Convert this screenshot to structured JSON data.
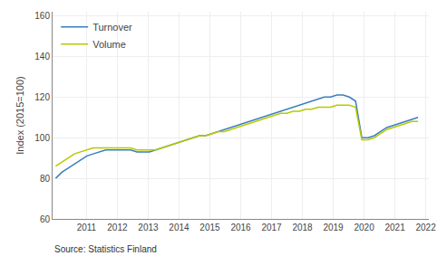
{
  "chart_data": {
    "type": "line",
    "ylabel": "Index (2015=100)",
    "x": [
      2010,
      2010.202586,
      2010.405172,
      2010.607759,
      2010.810345,
      2011.012931,
      2011.215517,
      2011.418103,
      2011.62069,
      2011.823276,
      2012.025862,
      2012.228448,
      2012.431034,
      2012.633621,
      2012.836207,
      2013.038793,
      2013.241379,
      2013.443966,
      2013.646552,
      2013.849138,
      2014.051724,
      2014.25431,
      2014.456897,
      2014.659483,
      2014.862069,
      2015.064655,
      2015.267241,
      2015.469828,
      2015.672414,
      2015.875,
      2016.077586,
      2016.280172,
      2016.482759,
      2016.685345,
      2016.887931,
      2017.090517,
      2017.293103,
      2017.49569,
      2017.698276,
      2017.900862,
      2018.103448,
      2018.306034,
      2018.508621,
      2018.711207,
      2018.913793,
      2019.116379,
      2019.318966,
      2019.521552,
      2019.724138,
      2019.926724,
      2020.12931,
      2020.331897,
      2020.534483,
      2020.737069,
      2020.939655,
      2021.142241,
      2021.344828,
      2021.547414,
      2021.75
    ],
    "series": [
      {
        "name": "Turnover",
        "color": "#3a7ebf",
        "values": [
          80,
          83,
          85,
          87,
          89,
          91,
          92,
          93,
          94,
          94,
          94,
          94,
          94,
          93,
          93,
          93,
          94,
          95,
          96,
          97,
          98,
          99,
          100,
          101,
          101,
          102,
          103,
          104,
          105,
          106,
          107,
          108,
          109,
          110,
          111,
          112,
          113,
          114,
          115,
          116,
          117,
          118,
          119,
          120,
          120,
          121,
          121,
          120,
          118,
          100,
          100,
          101,
          103,
          105,
          106,
          107,
          108,
          109,
          110
        ]
      },
      {
        "name": "Volume",
        "color": "#b8c900",
        "values": [
          86,
          88,
          90,
          92,
          93,
          94,
          95,
          95,
          95,
          95,
          95,
          95,
          95,
          94,
          94,
          94,
          94,
          95,
          96,
          97,
          98,
          99,
          100,
          101,
          101,
          102,
          103,
          103,
          104,
          105,
          106,
          107,
          108,
          109,
          110,
          111,
          112,
          112,
          113,
          113,
          114,
          114,
          115,
          115,
          115,
          116,
          116,
          116,
          115,
          99,
          99,
          100,
          102,
          104,
          105,
          106,
          107,
          108,
          108
        ]
      }
    ],
    "xlim": [
      2009.9,
      2022.1
    ],
    "ylim": [
      60,
      162
    ],
    "xticks": [
      2011,
      2012,
      2013,
      2014,
      2015,
      2016,
      2017,
      2018,
      2019,
      2020,
      2021,
      2022
    ],
    "yticks": [
      60,
      80,
      100,
      120,
      140,
      160
    ],
    "grid": true,
    "legend": "upper left",
    "annotations": [
      "Source: Statistics Finland"
    ]
  }
}
